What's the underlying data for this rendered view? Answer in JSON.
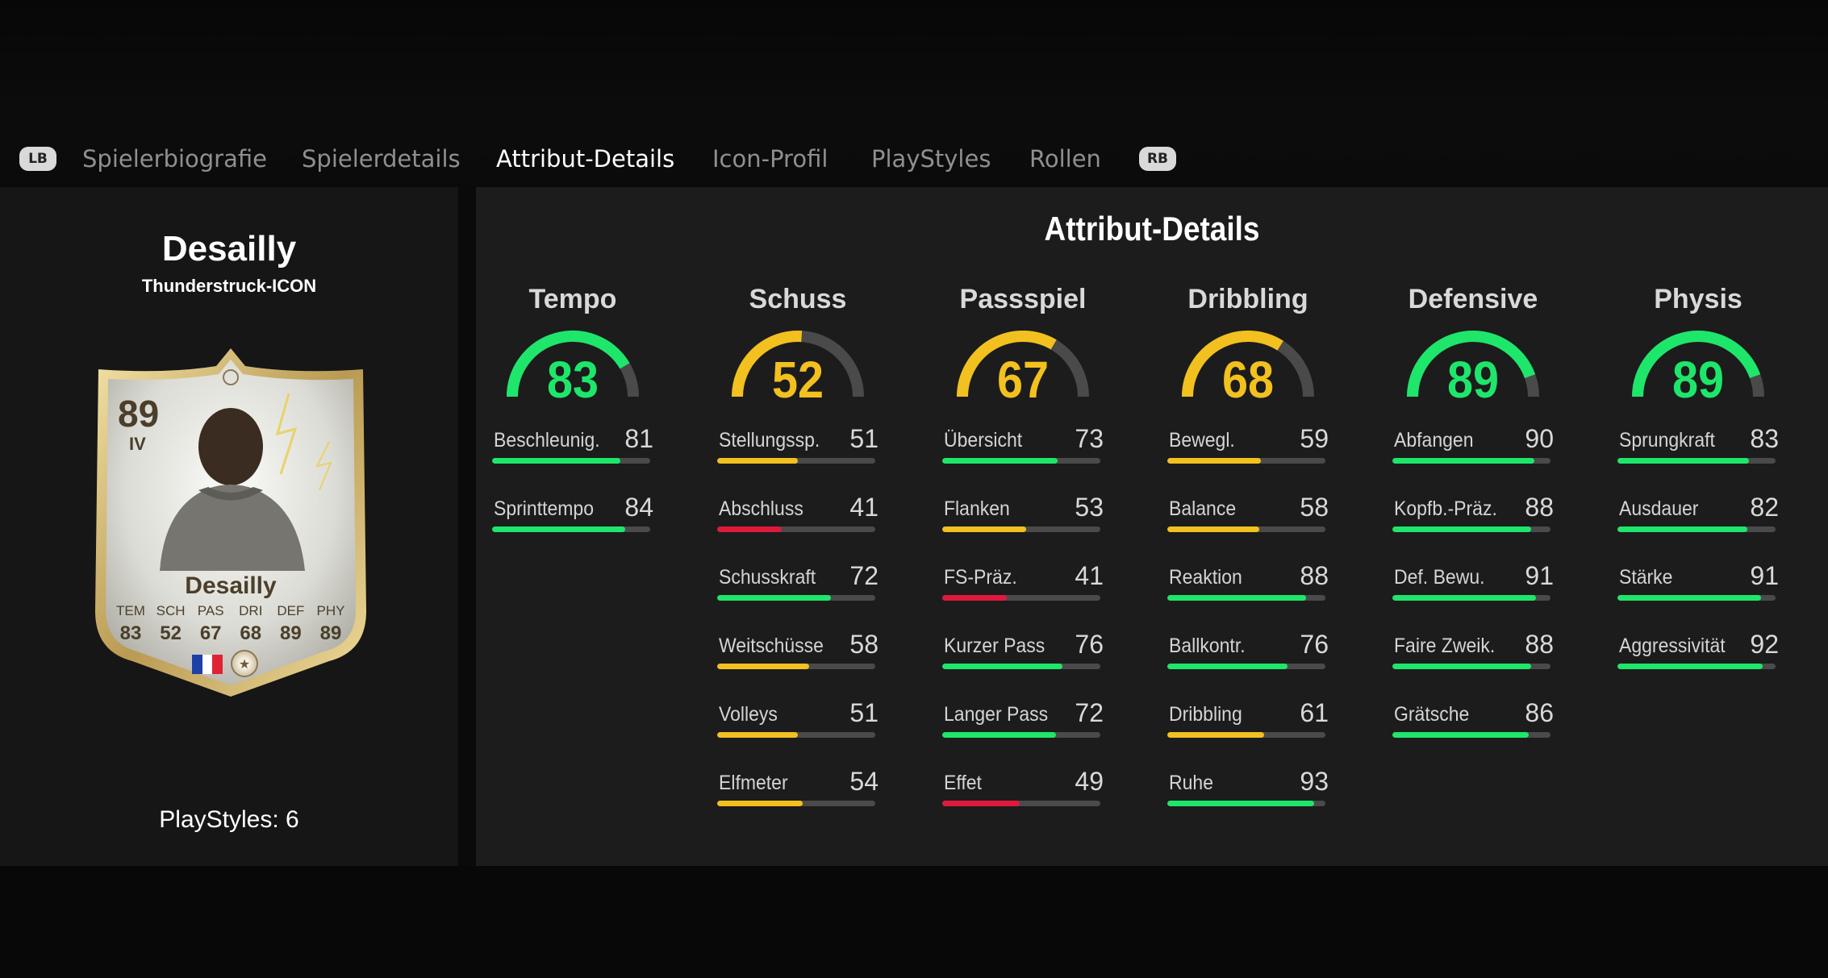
{
  "tabs": {
    "left_button": "LB",
    "right_button": "RB",
    "items": [
      {
        "label": "Spielerbiografie",
        "active": false
      },
      {
        "label": "Spielerdetails",
        "active": false
      },
      {
        "label": "Attribut-Details",
        "active": true
      },
      {
        "label": "Icon-Profil",
        "active": false
      },
      {
        "label": "PlayStyles",
        "active": false
      },
      {
        "label": "Rollen",
        "active": false
      }
    ]
  },
  "player": {
    "name": "Desailly",
    "version": "Thunderstruck-ICON",
    "playstyles_label": "PlayStyles: 6"
  },
  "card": {
    "rating": "89",
    "position": "IV",
    "name": "Desailly",
    "stats": [
      {
        "label": "TEM",
        "value": "83"
      },
      {
        "label": "SCH",
        "value": "52"
      },
      {
        "label": "PAS",
        "value": "67"
      },
      {
        "label": "DRI",
        "value": "68"
      },
      {
        "label": "DEF",
        "value": "89"
      },
      {
        "label": "PHY",
        "value": "89"
      }
    ],
    "nation_flag_colors": [
      "#1f3fa8",
      "#ffffff",
      "#e02233"
    ]
  },
  "colors": {
    "high": "#1ee66b",
    "mid": "#f2c01f",
    "low": "#e0193c",
    "track": "#4a4a4a"
  },
  "attributes": {
    "title": "Attribut-Details",
    "categories": [
      {
        "name": "Tempo",
        "value": 83,
        "subs": [
          {
            "name": "Beschleunig.",
            "value": 81
          },
          {
            "name": "Sprinttempo",
            "value": 84
          }
        ]
      },
      {
        "name": "Schuss",
        "value": 52,
        "subs": [
          {
            "name": "Stellungssp.",
            "value": 51
          },
          {
            "name": "Abschluss",
            "value": 41
          },
          {
            "name": "Schusskraft",
            "value": 72
          },
          {
            "name": "Weitschüsse",
            "value": 58
          },
          {
            "name": "Volleys",
            "value": 51
          },
          {
            "name": "Elfmeter",
            "value": 54
          }
        ]
      },
      {
        "name": "Passspiel",
        "value": 67,
        "subs": [
          {
            "name": "Übersicht",
            "value": 73
          },
          {
            "name": "Flanken",
            "value": 53
          },
          {
            "name": "FS-Präz.",
            "value": 41
          },
          {
            "name": "Kurzer Pass",
            "value": 76
          },
          {
            "name": "Langer Pass",
            "value": 72
          },
          {
            "name": "Effet",
            "value": 49
          }
        ]
      },
      {
        "name": "Dribbling",
        "value": 68,
        "subs": [
          {
            "name": "Bewegl.",
            "value": 59
          },
          {
            "name": "Balance",
            "value": 58
          },
          {
            "name": "Reaktion",
            "value": 88
          },
          {
            "name": "Ballkontr.",
            "value": 76
          },
          {
            "name": "Dribbling",
            "value": 61
          },
          {
            "name": "Ruhe",
            "value": 93
          }
        ]
      },
      {
        "name": "Defensive",
        "value": 89,
        "subs": [
          {
            "name": "Abfangen",
            "value": 90
          },
          {
            "name": "Kopfb.-Präz.",
            "value": 88
          },
          {
            "name": "Def. Bewu.",
            "value": 91
          },
          {
            "name": "Faire Zweik.",
            "value": 88
          },
          {
            "name": "Grätsche",
            "value": 86
          }
        ]
      },
      {
        "name": "Physis",
        "value": 89,
        "subs": [
          {
            "name": "Sprungkraft",
            "value": 83
          },
          {
            "name": "Ausdauer",
            "value": 82
          },
          {
            "name": "Stärke",
            "value": 91
          },
          {
            "name": "Aggressivität",
            "value": 92
          }
        ]
      }
    ]
  }
}
